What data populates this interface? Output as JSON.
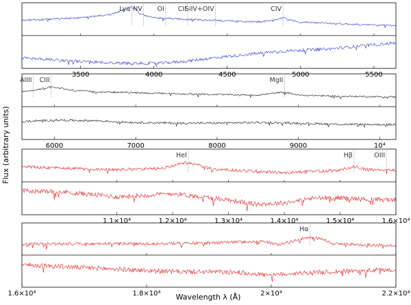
{
  "figure": {
    "xlabel": "Wavelength λ (Å)",
    "ylabel": "Flux (arbitrary units)"
  },
  "chart_data": [
    {
      "type": "line",
      "panel": 1,
      "xlim": [
        3100,
        5650
      ],
      "ylim": [
        0,
        1
      ],
      "tick_labels": [
        "3500",
        "4000",
        "4500",
        "5000",
        "5500"
      ],
      "tick_values": [
        3500,
        4000,
        4500,
        5000,
        5500
      ],
      "color": "#2a35d0",
      "lines": [
        {
          "label": "Lyα",
          "x": 3850
        },
        {
          "label": "NV",
          "x": 3930
        },
        {
          "label": "OI",
          "x": 4080
        },
        {
          "label": "CII",
          "x": 4230
        },
        {
          "label": "SiIV+OIV",
          "x": 4420
        },
        {
          "label": "CIV",
          "x": 4880
        }
      ],
      "series": [
        {
          "points": [
            [
              3100,
              0.46
            ],
            [
              3300,
              0.5
            ],
            [
              3500,
              0.55
            ],
            [
              3650,
              0.62
            ],
            [
              3750,
              0.72
            ],
            [
              3800,
              0.82
            ],
            [
              3840,
              0.92
            ],
            [
              3870,
              0.86
            ],
            [
              3900,
              0.7
            ],
            [
              3950,
              0.6
            ],
            [
              4000,
              0.55
            ],
            [
              4100,
              0.52
            ],
            [
              4200,
              0.5
            ],
            [
              4300,
              0.48
            ],
            [
              4400,
              0.46
            ],
            [
              4500,
              0.44
            ],
            [
              4600,
              0.42
            ],
            [
              4700,
              0.41
            ],
            [
              4800,
              0.44
            ],
            [
              4880,
              0.56
            ],
            [
              4920,
              0.48
            ],
            [
              5000,
              0.4
            ],
            [
              5200,
              0.36
            ],
            [
              5400,
              0.32
            ],
            [
              5650,
              0.28
            ]
          ],
          "noise": 0.03
        },
        {
          "points": [
            [
              3100,
              0.3
            ],
            [
              3300,
              0.25
            ],
            [
              3500,
              0.18
            ],
            [
              3700,
              0.14
            ],
            [
              3900,
              0.12
            ],
            [
              4000,
              0.12
            ],
            [
              4200,
              0.18
            ],
            [
              4400,
              0.3
            ],
            [
              4600,
              0.4
            ],
            [
              4800,
              0.5
            ],
            [
              5000,
              0.56
            ],
            [
              5200,
              0.6
            ],
            [
              5400,
              0.7
            ],
            [
              5650,
              0.8
            ]
          ],
          "noise": 0.05
        }
      ]
    },
    {
      "type": "line",
      "panel": 2,
      "xlim": [
        5600,
        10200
      ],
      "ylim": [
        0,
        1
      ],
      "tick_labels": [
        "6000",
        "7000",
        "8000",
        "9000",
        "10⁴"
      ],
      "tick_values": [
        6000,
        7000,
        8000,
        9000,
        10000
      ],
      "color": "#111111",
      "lines": [
        {
          "label": "AlIII",
          "x": 5740
        },
        {
          "label": "CIII",
          "x": 5960
        },
        {
          "label": "MgII",
          "x": 8830
        }
      ],
      "series": [
        {
          "points": [
            [
              5600,
              0.45
            ],
            [
              5800,
              0.52
            ],
            [
              5950,
              0.62
            ],
            [
              6050,
              0.58
            ],
            [
              6200,
              0.5
            ],
            [
              6500,
              0.45
            ],
            [
              7000,
              0.42
            ],
            [
              7500,
              0.38
            ],
            [
              8000,
              0.36
            ],
            [
              8500,
              0.34
            ],
            [
              8830,
              0.44
            ],
            [
              9000,
              0.34
            ],
            [
              9500,
              0.3
            ],
            [
              10200,
              0.28
            ]
          ],
          "noise": 0.025
        },
        {
          "points": [
            [
              5600,
              0.55
            ],
            [
              6000,
              0.6
            ],
            [
              6500,
              0.58
            ],
            [
              7000,
              0.52
            ],
            [
              7500,
              0.5
            ],
            [
              8000,
              0.5
            ],
            [
              8500,
              0.52
            ],
            [
              9000,
              0.5
            ],
            [
              9500,
              0.46
            ],
            [
              10200,
              0.45
            ]
          ],
          "noise": 0.035
        }
      ]
    },
    {
      "type": "line",
      "panel": 3,
      "xlim": [
        9300,
        16000
      ],
      "ylim": [
        0,
        1
      ],
      "tick_labels": [
        "1.1×10⁴",
        "1.2×10⁴",
        "1.3×10⁴",
        "1.4×10⁴",
        "1.5×10⁴",
        "1.6×10⁴"
      ],
      "tick_values": [
        11000,
        12000,
        13000,
        14000,
        15000,
        16000
      ],
      "color": "#e01818",
      "lines": [
        {
          "label": "HeI",
          "x": 12280
        },
        {
          "label": "Hβ",
          "x": 15250
        },
        {
          "label": "OIII",
          "x": 15830
        }
      ],
      "series": [
        {
          "points": [
            [
              9300,
              0.45
            ],
            [
              10000,
              0.42
            ],
            [
              11000,
              0.36
            ],
            [
              11800,
              0.4
            ],
            [
              12200,
              0.58
            ],
            [
              12400,
              0.55
            ],
            [
              12700,
              0.38
            ],
            [
              13500,
              0.3
            ],
            [
              14000,
              0.26
            ],
            [
              14500,
              0.3
            ],
            [
              15000,
              0.34
            ],
            [
              15250,
              0.46
            ],
            [
              15500,
              0.36
            ],
            [
              16000,
              0.34
            ]
          ],
          "noise": 0.05
        },
        {
          "points": [
            [
              9300,
              0.75
            ],
            [
              10000,
              0.72
            ],
            [
              11000,
              0.55
            ],
            [
              11500,
              0.6
            ],
            [
              12000,
              0.66
            ],
            [
              12500,
              0.55
            ],
            [
              13000,
              0.45
            ],
            [
              13500,
              0.3
            ],
            [
              14000,
              0.35
            ],
            [
              14500,
              0.5
            ],
            [
              15000,
              0.52
            ],
            [
              15500,
              0.46
            ],
            [
              16000,
              0.45
            ]
          ],
          "noise": 0.08
        }
      ]
    },
    {
      "type": "line",
      "panel": 4,
      "xlim": [
        16000,
        22000
      ],
      "ylim": [
        0,
        1
      ],
      "tick_labels": [
        "1.6×10⁴",
        "1.8×10⁴",
        "2×10⁴",
        "2.2×10⁴"
      ],
      "tick_values": [
        16000,
        18000,
        20000,
        22000
      ],
      "color": "#e01818",
      "lines": [
        {
          "label": "Hα",
          "x": 20620
        }
      ],
      "series": [
        {
          "points": [
            [
              16000,
              0.32
            ],
            [
              17000,
              0.34
            ],
            [
              18000,
              0.34
            ],
            [
              19000,
              0.36
            ],
            [
              19500,
              0.4
            ],
            [
              19900,
              0.42
            ],
            [
              20100,
              0.3
            ],
            [
              20300,
              0.4
            ],
            [
              20600,
              0.55
            ],
            [
              20800,
              0.52
            ],
            [
              21000,
              0.34
            ],
            [
              21500,
              0.3
            ],
            [
              22000,
              0.28
            ]
          ],
          "noise": 0.05
        },
        {
          "points": [
            [
              16000,
              0.72
            ],
            [
              17000,
              0.62
            ],
            [
              18000,
              0.52
            ],
            [
              18500,
              0.48
            ],
            [
              19000,
              0.48
            ],
            [
              19500,
              0.46
            ],
            [
              20000,
              0.35
            ],
            [
              20300,
              0.42
            ],
            [
              21000,
              0.48
            ],
            [
              21500,
              0.52
            ],
            [
              22000,
              0.55
            ]
          ],
          "noise": 0.08
        }
      ]
    }
  ]
}
